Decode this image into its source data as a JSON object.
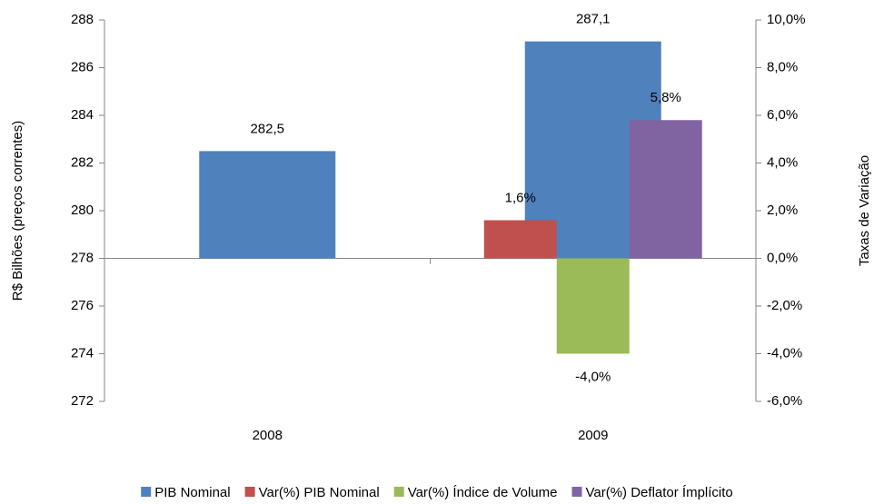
{
  "chart_data": {
    "type": "bar",
    "y_label": "R$ Bilhões (preços correntes)",
    "y2_label": "Taxas de Variação",
    "categories": [
      "2008",
      "2009"
    ],
    "x_axis_at": 278,
    "series": [
      {
        "name": "PIB Nominal",
        "color": "#4f81bd",
        "values": [
          282.5,
          287.1
        ],
        "value_labels": [
          "282,5",
          "287,1"
        ]
      },
      {
        "name": "Var(%) PIB Nominal",
        "color": "#c0504d",
        "axis": "y2",
        "values": [
          null,
          1.6
        ],
        "value_labels": [
          null,
          "1,6%"
        ]
      },
      {
        "name": "Var(%) Índice de Volume",
        "color": "#9bbb59",
        "axis": "y2",
        "values": [
          null,
          -4.0
        ],
        "value_labels": [
          null,
          "-4,0%"
        ]
      },
      {
        "name": "Var(%) Deflator Ímplícito",
        "color": "#8064a2",
        "axis": "y2",
        "values": [
          null,
          5.8
        ],
        "value_labels": [
          null,
          "5,8%"
        ]
      }
    ],
    "ylim": [
      272,
      288
    ],
    "yticks": [
      272,
      274,
      276,
      278,
      280,
      282,
      284,
      286,
      288
    ],
    "y2lim": [
      -6,
      10
    ],
    "y2ticks": [
      {
        "value": -6,
        "label": "-6,0%"
      },
      {
        "value": -4,
        "label": "-4,0%"
      },
      {
        "value": -2,
        "label": "-2,0%"
      },
      {
        "value": 0,
        "label": "0,0%"
      },
      {
        "value": 2,
        "label": "2,0%"
      },
      {
        "value": 4,
        "label": "4,0%"
      },
      {
        "value": 6,
        "label": "6,0%"
      },
      {
        "value": 8,
        "label": "8,0%"
      },
      {
        "value": 10,
        "label": "10,0%"
      }
    ]
  }
}
